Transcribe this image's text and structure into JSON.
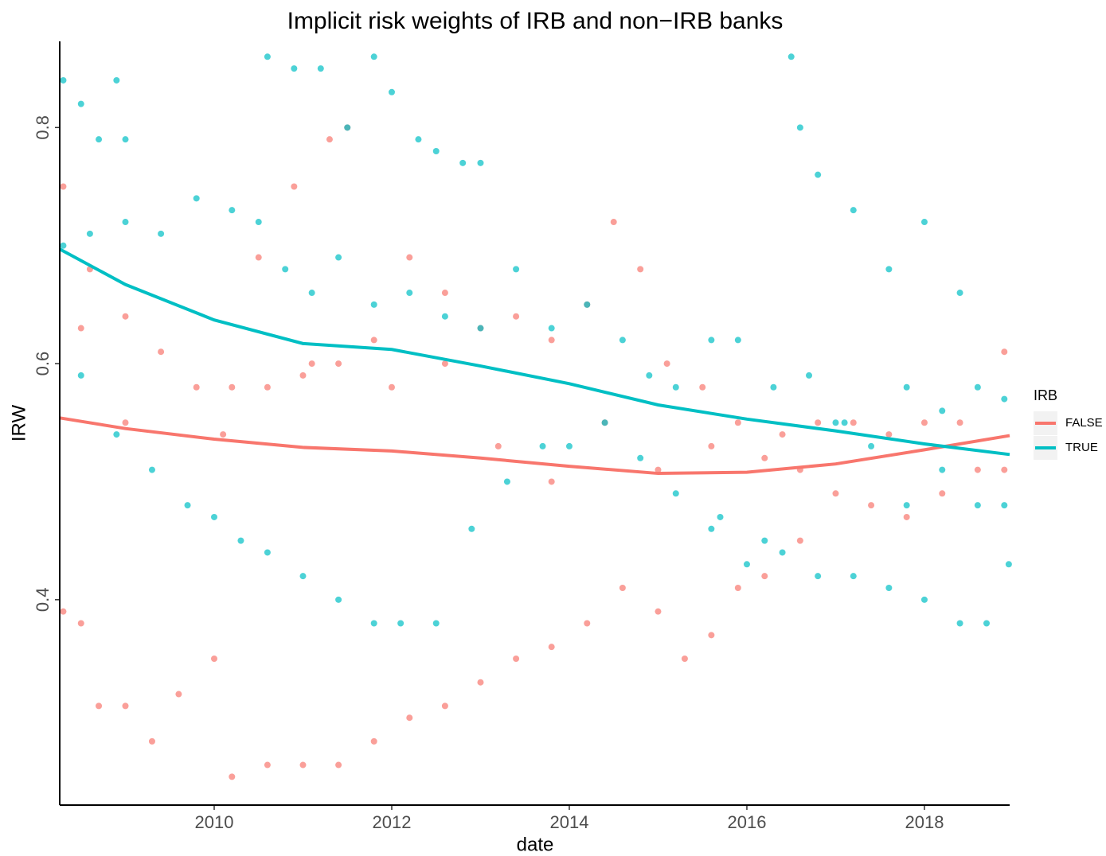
{
  "chart_data": {
    "type": "scatter",
    "title": "Implicit risk weights of IRB and non−IRB banks",
    "x_label": "date",
    "y_label": "IRW",
    "legend_title": "IRB",
    "legend_position": "right",
    "xlim": [
      2008.26,
      2018.96
    ],
    "ylim": [
      0.226,
      0.873
    ],
    "xticks": [
      2010,
      2012,
      2014,
      2016,
      2018
    ],
    "yticks": [
      0.4,
      0.6,
      0.8
    ],
    "series": [
      {
        "name": "FALSE",
        "color": "#f8766d",
        "x": [
          2008.3,
          2008.6,
          2009.0,
          2009.4,
          2009.8,
          2010.2,
          2010.6,
          2011.0,
          2011.4,
          2011.8,
          2012.2,
          2012.6,
          2013.0,
          2013.4,
          2013.8,
          2014.2,
          2014.5,
          2014.8,
          2015.1,
          2015.5,
          2015.9,
          2016.4,
          2016.8,
          2017.2,
          2017.6,
          2018.0,
          2018.4,
          2018.9,
          2008.3,
          2008.5,
          2008.7,
          2009.0,
          2009.3,
          2009.6,
          2010.0,
          2010.2,
          2010.6,
          2011.0,
          2011.4,
          2011.8,
          2012.2,
          2012.6,
          2013.0,
          2013.4,
          2013.8,
          2014.2,
          2014.6,
          2015.0,
          2015.3,
          2015.6,
          2015.9,
          2016.2,
          2016.6,
          2008.5,
          2009.0,
          2010.1,
          2011.1,
          2012.0,
          2012.6,
          2013.2,
          2013.8,
          2014.4,
          2015.0,
          2015.6,
          2016.2,
          2016.6,
          2017.0,
          2017.4,
          2017.8,
          2018.2,
          2018.6,
          2018.9,
          2011.3,
          2011.5,
          2010.9,
          2010.5
        ],
        "values": [
          0.75,
          0.68,
          0.64,
          0.61,
          0.58,
          0.58,
          0.58,
          0.59,
          0.6,
          0.62,
          0.69,
          0.66,
          0.63,
          0.64,
          0.62,
          0.65,
          0.72,
          0.68,
          0.6,
          0.58,
          0.55,
          0.54,
          0.55,
          0.55,
          0.54,
          0.55,
          0.55,
          0.61,
          0.39,
          0.38,
          0.31,
          0.31,
          0.28,
          0.32,
          0.35,
          0.25,
          0.26,
          0.26,
          0.26,
          0.28,
          0.3,
          0.31,
          0.33,
          0.35,
          0.36,
          0.38,
          0.41,
          0.39,
          0.35,
          0.37,
          0.41,
          0.42,
          0.45,
          0.63,
          0.55,
          0.54,
          0.6,
          0.58,
          0.6,
          0.53,
          0.5,
          0.55,
          0.51,
          0.53,
          0.52,
          0.51,
          0.49,
          0.48,
          0.47,
          0.49,
          0.51,
          0.51,
          0.79,
          0.8,
          0.75,
          0.69
        ],
        "trend": {
          "x": [
            2008.26,
            2009,
            2010,
            2011,
            2012,
            2013,
            2014,
            2015,
            2016,
            2017,
            2018,
            2018.96
          ],
          "values": [
            0.554,
            0.545,
            0.536,
            0.529,
            0.526,
            0.52,
            0.513,
            0.507,
            0.508,
            0.515,
            0.527,
            0.539
          ]
        }
      },
      {
        "name": "TRUE",
        "color": "#00bfc4",
        "x": [
          2008.3,
          2008.5,
          2008.7,
          2008.9,
          2009.0,
          2010.6,
          2010.9,
          2011.2,
          2011.5,
          2011.8,
          2012.0,
          2012.3,
          2012.5,
          2012.8,
          2013.0,
          2016.5,
          2016.6,
          2016.8,
          2017.2,
          2017.6,
          2018.0,
          2018.4,
          2008.3,
          2008.6,
          2009.0,
          2009.4,
          2009.8,
          2010.2,
          2010.5,
          2010.8,
          2011.1,
          2011.4,
          2011.8,
          2012.2,
          2012.6,
          2013.0,
          2013.4,
          2013.8,
          2014.2,
          2014.6,
          2014.9,
          2015.2,
          2015.6,
          2015.9,
          2016.3,
          2016.7,
          2017.0,
          2017.4,
          2017.8,
          2018.2,
          2018.6,
          2018.9,
          2008.5,
          2008.9,
          2009.3,
          2009.7,
          2010.0,
          2010.3,
          2010.6,
          2011.0,
          2011.4,
          2011.8,
          2012.1,
          2012.5,
          2012.9,
          2013.3,
          2013.7,
          2014.0,
          2014.4,
          2014.8,
          2015.2,
          2015.6,
          2016.0,
          2016.4,
          2016.8,
          2017.2,
          2017.6,
          2018.0,
          2018.4,
          2018.7,
          2018.95,
          2015.7,
          2016.2,
          2017.1,
          2017.8,
          2018.2,
          2018.6,
          2018.9
        ],
        "values": [
          0.84,
          0.82,
          0.79,
          0.84,
          0.79,
          0.86,
          0.85,
          0.85,
          0.8,
          0.86,
          0.83,
          0.79,
          0.78,
          0.77,
          0.77,
          0.86,
          0.8,
          0.76,
          0.73,
          0.68,
          0.72,
          0.66,
          0.7,
          0.71,
          0.72,
          0.71,
          0.74,
          0.73,
          0.72,
          0.68,
          0.66,
          0.69,
          0.65,
          0.66,
          0.64,
          0.63,
          0.68,
          0.63,
          0.65,
          0.62,
          0.59,
          0.58,
          0.62,
          0.62,
          0.58,
          0.59,
          0.55,
          0.53,
          0.58,
          0.56,
          0.58,
          0.57,
          0.59,
          0.54,
          0.51,
          0.48,
          0.47,
          0.45,
          0.44,
          0.42,
          0.4,
          0.38,
          0.38,
          0.38,
          0.46,
          0.5,
          0.53,
          0.53,
          0.55,
          0.52,
          0.49,
          0.46,
          0.43,
          0.44,
          0.42,
          0.42,
          0.41,
          0.4,
          0.38,
          0.38,
          0.43,
          0.47,
          0.45,
          0.55,
          0.48,
          0.51,
          0.48,
          0.48
        ],
        "trend": {
          "x": [
            2008.26,
            2009,
            2010,
            2011,
            2012,
            2013,
            2014,
            2015,
            2016,
            2017,
            2018,
            2018.96
          ],
          "values": [
            0.697,
            0.667,
            0.637,
            0.617,
            0.612,
            0.598,
            0.583,
            0.565,
            0.553,
            0.543,
            0.532,
            0.523
          ]
        }
      }
    ]
  }
}
